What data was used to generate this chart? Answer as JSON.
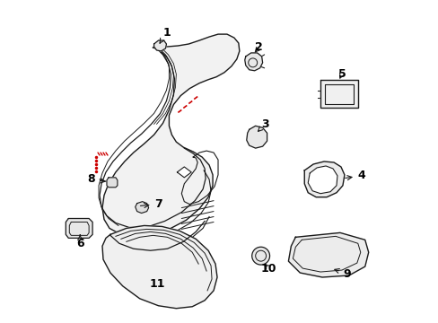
{
  "bg_color": "#ffffff",
  "line_color": "#1a1a1a",
  "red_color": "#cc0000",
  "label_color": "#000000",
  "figsize": [
    4.89,
    3.6
  ],
  "dpi": 100
}
